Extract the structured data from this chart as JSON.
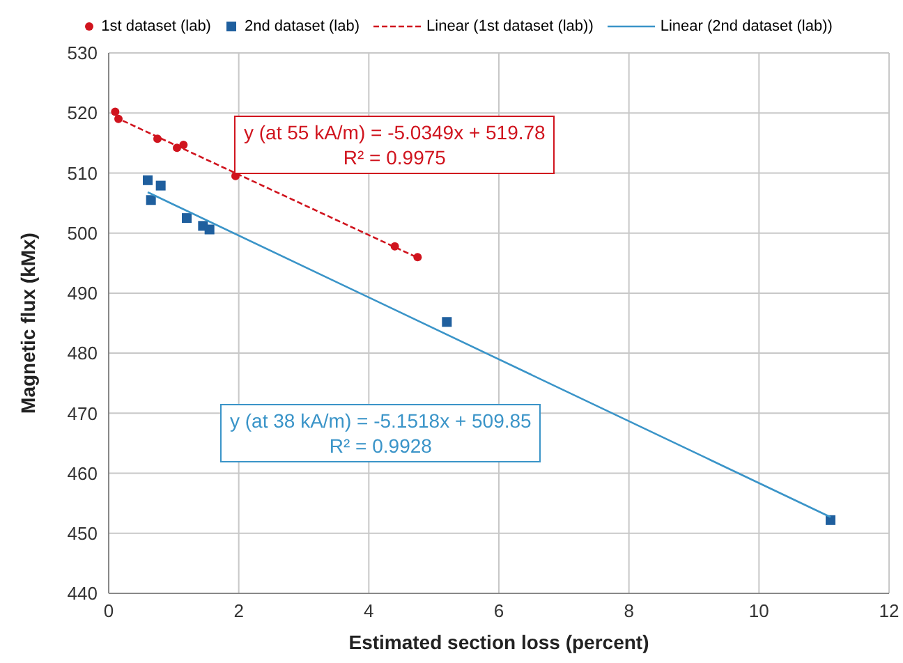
{
  "chart_data": {
    "type": "scatter",
    "xlabel": "Estimated section loss (percent)",
    "ylabel": "Magnetic flux (kMx)",
    "xlim": [
      0,
      12
    ],
    "xticks": [
      0,
      2,
      4,
      6,
      8,
      10,
      12
    ],
    "ylim": [
      440,
      530
    ],
    "yticks": [
      440,
      450,
      460,
      470,
      480,
      490,
      500,
      510,
      520,
      530
    ],
    "grid": true,
    "legend": "top",
    "series": [
      {
        "name": "1st dataset (lab)",
        "marker": "circle",
        "color": "#d0141e",
        "x": [
          0.1,
          0.15,
          0.75,
          1.05,
          1.15,
          1.95,
          4.4,
          4.75
        ],
        "values": [
          520.2,
          519,
          515.7,
          514.2,
          514.7,
          509.5,
          497.8,
          496
        ]
      },
      {
        "name": "2nd dataset (lab)",
        "marker": "square",
        "color": "#1f5f9e",
        "x": [
          0.6,
          0.8,
          0.65,
          1.2,
          1.45,
          1.55,
          5.2,
          11.1
        ],
        "values": [
          508.8,
          507.9,
          505.5,
          502.5,
          501.2,
          500.6,
          485.2,
          452.2
        ]
      },
      {
        "name": "Linear (1st dataset (lab))",
        "type": "line",
        "marker": "none",
        "line_style": "dashed",
        "color": "#d0141e",
        "x": [
          0.1,
          4.75
        ],
        "values": [
          519.3,
          495.9
        ]
      },
      {
        "name": "Linear (2nd dataset (lab))",
        "type": "line",
        "marker": "none",
        "line_style": "solid",
        "color": "#3a94c8",
        "x": [
          0.6,
          11.1
        ],
        "values": [
          506.8,
          452.7
        ]
      }
    ],
    "annotations": [
      "y (at 55 kA/m) = -5.0349x + 519.78\nR² = 0.9975",
      "y (at 38 kA/m) = -5.1518x + 509.85\nR² = 0.9928"
    ]
  }
}
